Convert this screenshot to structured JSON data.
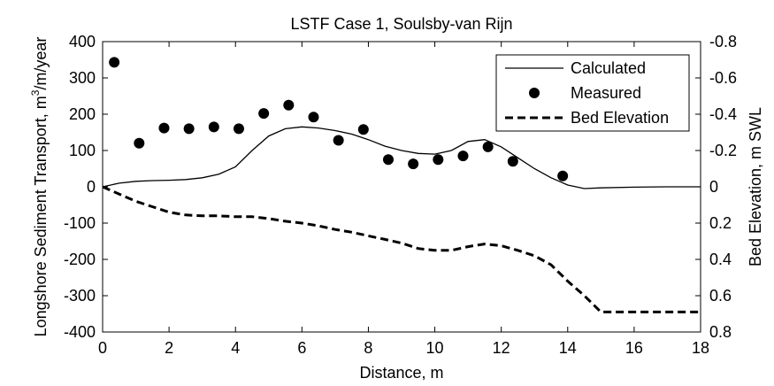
{
  "chart_data": {
    "type": "line",
    "title": "LSTF Case 1, Soulsby-van Rijn",
    "xlabel": "Distance, m",
    "ylabel_left": "Longshore Sediment Transport, m",
    "ylabel_left_sup": "3",
    "ylabel_left_suffix": "/m/year",
    "ylabel_right": "Bed Elevation, m SWL",
    "xlim": [
      0,
      18
    ],
    "ylim_left": [
      -400,
      400
    ],
    "ylim_right": [
      0.8,
      -0.8
    ],
    "xticks": [
      "0",
      "2",
      "4",
      "6",
      "8",
      "10",
      "12",
      "14",
      "16",
      "18"
    ],
    "yticks_left": [
      "400",
      "300",
      "200",
      "100",
      "0",
      "-100",
      "-200",
      "-300",
      "-400"
    ],
    "yticks_right": [
      "-0.8",
      "-0.6",
      "-0.4",
      "-0.2",
      "0",
      "0.2",
      "0.4",
      "0.6",
      "0.8"
    ],
    "grid": false,
    "legend_position": "top-right",
    "series": [
      {
        "name": "Calculated",
        "axis": "left",
        "style": "solid",
        "x": [
          0,
          0.5,
          1,
          1.5,
          2,
          2.5,
          3,
          3.5,
          4,
          4.5,
          5,
          5.5,
          6,
          6.5,
          7,
          7.5,
          8,
          8.5,
          9,
          9.5,
          10,
          10.5,
          11,
          11.5,
          12,
          12.5,
          13,
          13.5,
          14,
          14.5,
          15,
          16,
          17,
          18
        ],
        "y": [
          0,
          10,
          15,
          17,
          18,
          20,
          25,
          35,
          55,
          100,
          140,
          160,
          165,
          162,
          155,
          145,
          130,
          112,
          100,
          92,
          90,
          100,
          125,
          130,
          110,
          80,
          50,
          25,
          5,
          -5,
          -3,
          -1,
          0,
          0
        ]
      },
      {
        "name": "Measured",
        "axis": "left",
        "style": "markers",
        "x": [
          0.35,
          1.1,
          1.85,
          2.6,
          3.35,
          4.1,
          4.85,
          5.6,
          6.35,
          7.1,
          7.85,
          8.6,
          9.35,
          10.1,
          10.85,
          11.6,
          12.35,
          13.85
        ],
        "y": [
          343,
          120,
          162,
          160,
          165,
          160,
          202,
          225,
          192,
          128,
          158,
          75,
          63,
          75,
          85,
          110,
          70,
          30
        ]
      },
      {
        "name": "Bed Elevation",
        "axis": "right",
        "style": "dashed",
        "x": [
          0,
          0.5,
          1,
          1.5,
          2,
          2.5,
          3,
          3.5,
          4,
          4.5,
          5,
          5.5,
          6,
          6.5,
          7,
          7.5,
          8,
          8.5,
          9,
          9.5,
          10,
          10.5,
          11,
          11.5,
          12,
          12.5,
          13,
          13.5,
          14,
          14.5,
          15,
          16,
          17,
          18
        ],
        "y": [
          0,
          0.04,
          0.08,
          0.11,
          0.14,
          0.155,
          0.16,
          0.16,
          0.165,
          0.165,
          0.175,
          0.19,
          0.2,
          0.215,
          0.235,
          0.25,
          0.27,
          0.29,
          0.31,
          0.34,
          0.35,
          0.35,
          0.33,
          0.315,
          0.325,
          0.35,
          0.38,
          0.43,
          0.52,
          0.6,
          0.69,
          0.69,
          0.69,
          0.69
        ]
      }
    ]
  }
}
